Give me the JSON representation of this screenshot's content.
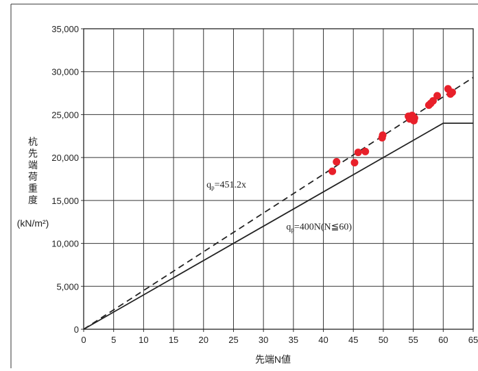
{
  "chart_data": {
    "type": "scatter",
    "title": "",
    "xlabel": "先端N値",
    "ylabel_lines": [
      "杭",
      "先",
      "端",
      "荷",
      "重",
      "度"
    ],
    "ylabel_unit": "(kN/m²)",
    "xlim": [
      0,
      65
    ],
    "ylim": [
      0,
      35000
    ],
    "x_ticks": [
      0,
      5,
      10,
      15,
      20,
      25,
      30,
      35,
      40,
      45,
      50,
      55,
      60,
      65
    ],
    "y_ticks": [
      0,
      5000,
      10000,
      15000,
      20000,
      25000,
      30000,
      35000
    ],
    "x_tick_labels": [
      "0",
      "5",
      "10",
      "15",
      "20",
      "25",
      "30",
      "35",
      "40",
      "45",
      "50",
      "55",
      "60",
      "65"
    ],
    "y_tick_labels": [
      "0",
      "5,000",
      "10,000",
      "15,000",
      "20,000",
      "25,000",
      "30,000",
      "35,000"
    ],
    "grid": true,
    "series": [
      {
        "marker": "circle",
        "color": "#e8202a",
        "points": [
          [
            41.5,
            18400
          ],
          [
            42.2,
            19500
          ],
          [
            45.2,
            19400
          ],
          [
            45.8,
            20600
          ],
          [
            47.0,
            20700
          ],
          [
            49.8,
            22300
          ],
          [
            49.9,
            22600
          ],
          [
            54.2,
            24800
          ],
          [
            54.4,
            24500
          ],
          [
            54.6,
            24700
          ],
          [
            54.8,
            24900
          ],
          [
            55.1,
            24300
          ],
          [
            55.2,
            24600
          ],
          [
            57.6,
            26100
          ],
          [
            57.9,
            26300
          ],
          [
            58.3,
            26600
          ],
          [
            59.0,
            27200
          ],
          [
            60.8,
            28000
          ],
          [
            61.2,
            27400
          ],
          [
            61.5,
            27600
          ]
        ]
      }
    ],
    "lines": [
      {
        "style": "dashed",
        "color": "#222222",
        "points": [
          [
            0,
            0
          ],
          [
            65,
            29328
          ]
        ],
        "label": "qp=451.2x"
      },
      {
        "style": "solid",
        "color": "#222222",
        "points": [
          [
            0,
            0
          ],
          [
            60,
            24000
          ],
          [
            65,
            24000
          ]
        ],
        "label": "qp=400N(N≦60)"
      }
    ],
    "annotations": [
      {
        "text_main": "q",
        "text_sub": "p",
        "text_rest": "=451.2x",
        "at": [
          20.5,
          16500
        ]
      },
      {
        "text_main": "q",
        "text_sub": "p",
        "text_rest": "=400N(N≦60)",
        "at": [
          33.8,
          11600
        ]
      }
    ]
  }
}
